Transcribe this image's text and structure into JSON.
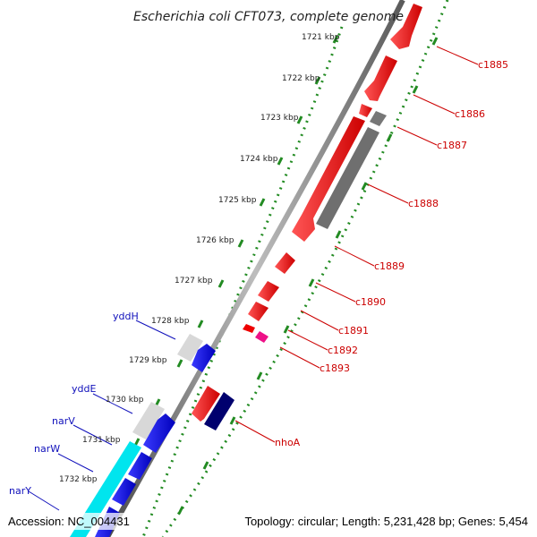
{
  "map": {
    "title": "Escherichia coli CFT073, complete genome",
    "accession": "Accession: NC_004431",
    "summary": "Topology: circular; Length: 5,231,428 bp; Genes: 5,454"
  },
  "ticks": [
    "1721 kbp",
    "1722 kbp",
    "1723 kbp",
    "1724 kbp",
    "1725 kbp",
    "1726 kbp",
    "1727 kbp",
    "1728 kbp",
    "1729 kbp",
    "1730 kbp",
    "1731 kbp",
    "1732 kbp"
  ],
  "genes_right": [
    "c1885",
    "c1886",
    "c1887",
    "c1888",
    "c1889",
    "c1890",
    "c1891",
    "c1892",
    "c1893",
    "nhoA"
  ],
  "genes_left": [
    "yddH",
    "yddE",
    "narV",
    "narW",
    "narY"
  ],
  "colors": {
    "forward_cds": "#ff0000",
    "reverse_cds": "#1010ee",
    "gray_feature": "#777777",
    "light_feature": "#d8d8d8",
    "cyan_feature": "#00e5ee",
    "magenta_feature": "#ee1188",
    "navy_feature": "#00006e",
    "tick_green": "#228b22"
  }
}
